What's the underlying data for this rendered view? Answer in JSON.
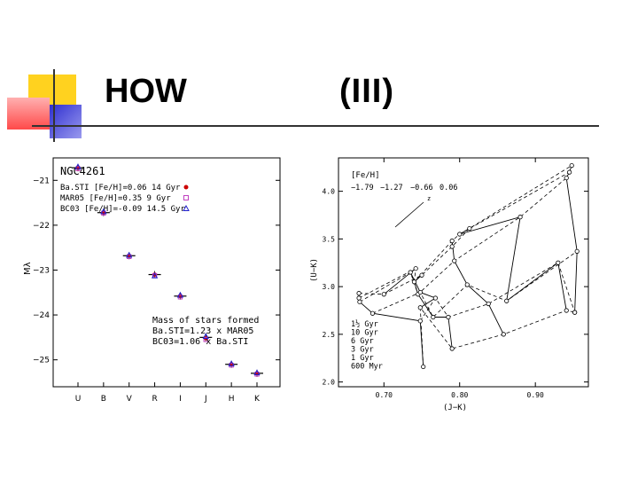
{
  "slide": {
    "title_left": "HOW",
    "title_right": "(III)",
    "accent_colors": {
      "yellow": "#ffd21f",
      "red": "#ff5a5a",
      "blue": "#3a3ad8"
    }
  },
  "chart_data": [
    {
      "type": "scatter",
      "title": "NGC4261",
      "ylabel": "Mλ",
      "xlabel": "",
      "categories": [
        "U",
        "B",
        "V",
        "R",
        "I",
        "J",
        "H",
        "K"
      ],
      "ylim": [
        -20.5,
        -25.6
      ],
      "yticks": [
        -21,
        -22,
        -23,
        -24,
        -25
      ],
      "ytick_labels": [
        "−21",
        "−22",
        "−23",
        "−24",
        "−25"
      ],
      "series": [
        {
          "name": "Ba.STI [Fe/H]=0.06 14 Gyr",
          "marker": "dot",
          "color": "#cc0000",
          "values": [
            -20.72,
            -21.72,
            -22.68,
            -23.1,
            -23.58,
            -24.52,
            -25.1,
            -25.3
          ]
        },
        {
          "name": "MAR05 [Fe/H]=0.35 9 Gyr",
          "marker": "square",
          "color": "#c040c0",
          "values": [
            -20.74,
            -21.73,
            -22.7,
            -23.12,
            -23.6,
            -24.55,
            -25.12,
            -25.32
          ]
        },
        {
          "name": "BC03 [Fe/H]=-0.09 14.5 Gyr",
          "marker": "triangle",
          "color": "#2020cc",
          "values": [
            -20.7,
            -21.7,
            -22.67,
            -23.13,
            -23.56,
            -24.48,
            -25.09,
            -25.29
          ]
        }
      ],
      "observed": [
        -20.72,
        -21.72,
        -22.68,
        -23.1,
        -23.58,
        -24.5,
        -25.1,
        -25.3
      ],
      "annotation": [
        "Mass of stars formed",
        "Ba.STI=1.23 x MAR05",
        "BC03=1.06 x Ba.STI"
      ]
    },
    {
      "type": "line",
      "xlabel": "(J−K)",
      "ylabel": "(U−K)",
      "xlim": [
        0.64,
        0.97
      ],
      "ylim": [
        1.95,
        4.35
      ],
      "xticks": [
        0.7,
        0.8,
        0.9
      ],
      "xtick_labels": [
        "0.70",
        "0.80",
        "0.90"
      ],
      "yticks": [
        2.0,
        2.5,
        3.0,
        3.5,
        4.0
      ],
      "ytick_labels": [
        "2.0",
        "2.5",
        "3.0",
        "3.5",
        "4.0"
      ],
      "legend_title": "[Fe/H]",
      "metallicities": [
        "−1.79",
        "−1.27",
        "−0.66",
        "0.06"
      ],
      "legend_arrow_label": "z",
      "ages": [
        "1½ Gyr",
        "10 Gyr",
        "6 Gyr",
        "3 Gyr",
        "1 Gyr",
        "600 Myr"
      ],
      "grid": [
        [
          [
            0.667,
            2.93
          ],
          [
            0.7,
            2.92
          ],
          [
            0.75,
            3.12
          ],
          [
            0.79,
            3.42
          ],
          [
            0.813,
            3.61
          ],
          [
            0.948,
            4.27
          ]
        ],
        [
          [
            0.667,
            2.88
          ],
          [
            0.742,
            3.19
          ],
          [
            0.74,
            3.05
          ],
          [
            0.79,
            3.48
          ],
          [
            0.8,
            3.55
          ],
          [
            0.945,
            4.2
          ]
        ],
        [
          [
            0.668,
            2.84
          ],
          [
            0.735,
            3.15
          ],
          [
            0.745,
            2.92
          ],
          [
            0.793,
            3.27
          ],
          [
            0.88,
            3.73
          ],
          [
            0.941,
            4.14
          ]
        ],
        [
          [
            0.685,
            2.72
          ],
          [
            0.748,
            2.94
          ],
          [
            0.765,
            2.68
          ],
          [
            0.81,
            3.02
          ],
          [
            0.862,
            2.85
          ],
          [
            0.955,
            3.37
          ]
        ],
        [
          [
            0.748,
            2.64
          ],
          [
            0.768,
            2.88
          ],
          [
            0.785,
            2.68
          ],
          [
            0.838,
            2.82
          ],
          [
            0.93,
            3.25
          ],
          [
            0.952,
            2.73
          ]
        ],
        [
          [
            0.752,
            2.16
          ],
          [
            0.748,
            2.78
          ],
          [
            0.79,
            2.35
          ],
          [
            0.858,
            2.5
          ],
          [
            0.941,
            2.75
          ],
          [
            0.952,
            2.73
          ]
        ]
      ]
    }
  ]
}
